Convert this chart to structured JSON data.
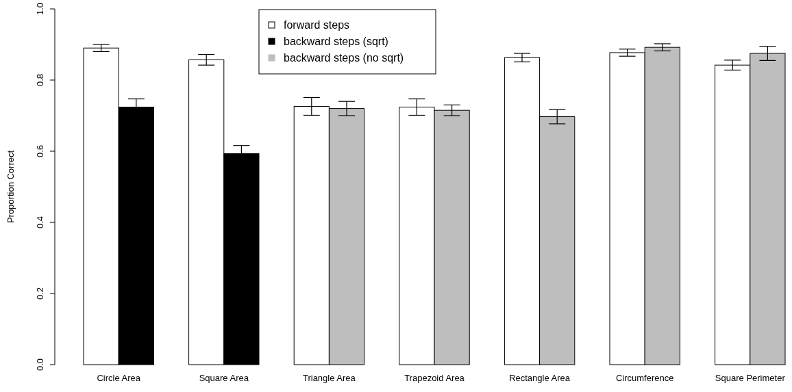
{
  "chart_data": {
    "type": "bar",
    "ylabel": "Proportion Correct",
    "categories": [
      "Circle Area",
      "Square Area",
      "Triangle Area",
      "Trapezoid Area",
      "Rectangle Area",
      "Circumference",
      "Square Perimeter"
    ],
    "series": [
      {
        "name": "forward steps",
        "color": "#ffffff",
        "values": [
          0.89,
          0.857,
          0.726,
          0.724,
          0.863,
          0.877,
          0.842
        ],
        "errors": [
          0.01,
          0.015,
          0.025,
          0.023,
          0.012,
          0.01,
          0.014
        ]
      },
      {
        "name": "backward steps (sqrt)",
        "color": "#000000",
        "values": [
          0.724,
          0.593,
          null,
          null,
          null,
          null,
          null
        ],
        "errors": [
          0.023,
          0.023,
          null,
          null,
          null,
          null,
          null
        ]
      },
      {
        "name": "backward steps (no sqrt)",
        "color": "#bebebe",
        "values": [
          null,
          null,
          0.72,
          0.715,
          0.697,
          0.892,
          0.875
        ],
        "errors": [
          null,
          null,
          0.02,
          0.015,
          0.02,
          0.01,
          0.02
        ]
      }
    ],
    "ylim": [
      0,
      1
    ],
    "yticks": [
      {
        "value": 0,
        "label": "0.0"
      },
      0.2,
      0.4,
      0.6,
      0.8,
      {
        "value": 1,
        "label": "1.0"
      }
    ],
    "legend": "top"
  }
}
